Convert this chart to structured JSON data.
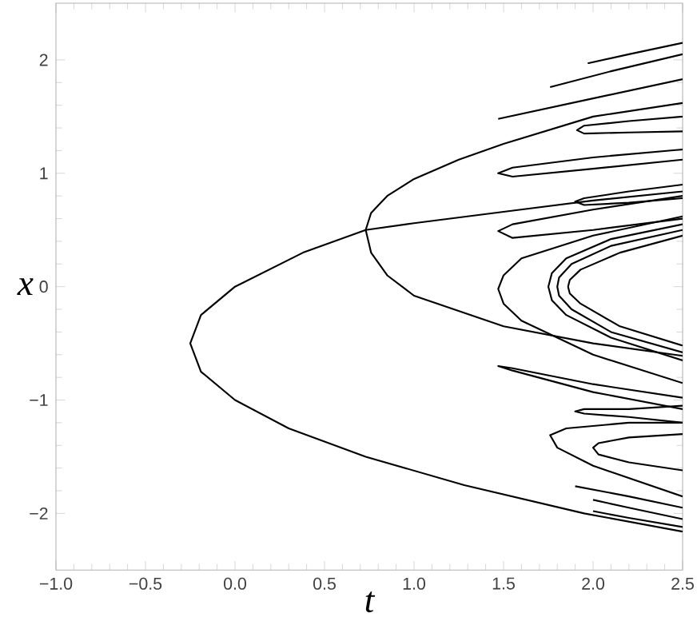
{
  "chart_data": {
    "type": "line",
    "xlabel": "t",
    "ylabel": "x",
    "xlim": [
      -1.0,
      2.5
    ],
    "ylim": [
      -2.5,
      2.5
    ],
    "xticks": [
      {
        "value": -1.0,
        "label": "−1.0"
      },
      {
        "value": -0.5,
        "label": "−0.5"
      },
      {
        "value": 0.0,
        "label": "0.0"
      },
      {
        "value": 0.5,
        "label": "0.5"
      },
      {
        "value": 1.0,
        "label": "1.0"
      },
      {
        "value": 1.5,
        "label": "1.5"
      },
      {
        "value": 2.0,
        "label": "2.0"
      },
      {
        "value": 2.5,
        "label": "2.5"
      }
    ],
    "yticks": [
      {
        "value": -2,
        "label": "−2"
      },
      {
        "value": -1,
        "label": "−1"
      },
      0,
      1,
      2
    ],
    "marker": "none",
    "line_style": "solid",
    "series": [
      {
        "color": "#000000",
        "x": [
          2.5,
          2.0,
          1.5,
          1.0,
          0.73,
          0.38,
          0.0,
          -0.19,
          -0.25,
          -0.19,
          0.0,
          0.3,
          0.73,
          1.28,
          1.95,
          2.5
        ],
        "values": [
          0.84,
          0.76,
          0.66,
          0.56,
          0.5,
          0.3,
          0.0,
          -0.25,
          -0.5,
          -0.75,
          -1.0,
          -1.25,
          -1.5,
          -1.75,
          -2.0,
          -2.16
        ]
      },
      {
        "color": "#000000",
        "x": [
          2.5,
          2.0,
          1.5,
          1.25,
          1.0,
          0.85,
          0.76,
          0.73,
          0.76,
          0.85,
          1.0,
          1.5,
          2.0,
          2.5
        ],
        "values": [
          1.62,
          1.5,
          1.26,
          1.12,
          0.95,
          0.8,
          0.65,
          0.5,
          0.3,
          0.1,
          -0.08,
          -0.35,
          -0.5,
          -0.61
        ]
      },
      {
        "color": "#000000",
        "x": [
          2.5,
          2.0,
          1.55,
          1.47,
          1.55,
          2.0,
          2.5
        ],
        "values": [
          1.21,
          1.14,
          1.05,
          1.0,
          0.97,
          1.04,
          1.12
        ]
      },
      {
        "color": "#000000",
        "x": [
          2.5,
          2.0,
          1.55,
          1.47,
          1.55,
          2.0,
          2.5
        ],
        "values": [
          0.8,
          0.68,
          0.55,
          0.49,
          0.43,
          0.5,
          0.6
        ]
      },
      {
        "color": "#000000",
        "x": [
          2.5,
          2.0,
          1.6,
          1.5,
          1.47,
          1.5,
          1.6,
          2.0,
          2.5
        ],
        "values": [
          0.62,
          0.45,
          0.25,
          0.1,
          -0.02,
          -0.15,
          -0.3,
          -0.6,
          -0.85
        ]
      },
      {
        "color": "#000000",
        "x": [
          2.5,
          2.0,
          1.55,
          1.47,
          1.55,
          2.0,
          2.5
        ],
        "values": [
          -0.98,
          -0.86,
          -0.72,
          -0.7,
          -0.74,
          -0.93,
          -1.08
        ]
      },
      {
        "color": "#000000",
        "x": [
          2.5,
          2.2,
          1.95,
          1.91,
          1.95,
          2.2,
          2.5
        ],
        "values": [
          1.5,
          1.46,
          1.42,
          1.38,
          1.35,
          1.36,
          1.37
        ]
      },
      {
        "color": "#000000",
        "x": [
          2.5,
          2.2,
          1.95,
          1.9,
          1.95,
          2.2,
          2.5
        ],
        "values": [
          0.9,
          0.84,
          0.78,
          0.75,
          0.72,
          0.74,
          0.78
        ]
      },
      {
        "color": "#000000",
        "x": [
          2.5,
          2.2,
          1.95,
          1.9,
          1.95,
          2.2,
          2.5
        ],
        "values": [
          -1.05,
          -1.08,
          -1.08,
          -1.1,
          -1.12,
          -1.15,
          -1.2
        ]
      },
      {
        "color": "#000000",
        "x": [
          2.5,
          2.2,
          2.03,
          2.0,
          2.03,
          2.2,
          2.5
        ],
        "values": [
          -1.3,
          -1.33,
          -1.38,
          -1.42,
          -1.48,
          -1.55,
          -1.62
        ]
      },
      {
        "color": "#000000",
        "x": [
          2.5,
          2.2,
          1.85,
          1.76,
          1.8,
          2.0,
          2.5
        ],
        "values": [
          -1.2,
          -1.2,
          -1.25,
          -1.31,
          -1.42,
          -1.58,
          -1.85
        ]
      },
      {
        "color": "#000000",
        "x": [
          2.5,
          2.1,
          1.85,
          1.77,
          1.75,
          1.77,
          1.85,
          2.1,
          2.5
        ],
        "values": [
          0.55,
          0.42,
          0.25,
          0.12,
          0.0,
          -0.12,
          -0.25,
          -0.45,
          -0.65
        ]
      },
      {
        "color": "#000000",
        "x": [
          2.5,
          2.1,
          1.88,
          1.81,
          1.8,
          1.81,
          1.88,
          2.1,
          2.5
        ],
        "values": [
          0.5,
          0.36,
          0.2,
          0.08,
          0.0,
          -0.08,
          -0.2,
          -0.4,
          -0.58
        ]
      },
      {
        "color": "#000000",
        "x": [
          2.5,
          2.15,
          1.93,
          1.87,
          1.86,
          1.87,
          1.93,
          2.15,
          2.5
        ],
        "values": [
          0.45,
          0.3,
          0.15,
          0.06,
          0.0,
          -0.06,
          -0.15,
          -0.35,
          -0.52
        ]
      },
      {
        "color": "#000000",
        "x": [
          1.47,
          2.0,
          2.5
        ],
        "values": [
          1.48,
          1.66,
          1.83
        ]
      },
      {
        "color": "#000000",
        "x": [
          1.76,
          2.1,
          2.5
        ],
        "values": [
          1.76,
          1.9,
          2.05
        ]
      },
      {
        "color": "#000000",
        "x": [
          1.97,
          2.2,
          2.5
        ],
        "values": [
          1.97,
          2.05,
          2.15
        ]
      },
      {
        "color": "#000000",
        "x": [
          1.9,
          2.2,
          2.5
        ],
        "values": [
          -1.76,
          -1.85,
          -1.95
        ]
      },
      {
        "color": "#000000",
        "x": [
          2.0,
          2.2,
          2.5
        ],
        "values": [
          -1.88,
          -1.95,
          -2.05
        ]
      },
      {
        "color": "#000000",
        "x": [
          2.0,
          2.2,
          2.5
        ],
        "values": [
          -1.98,
          -2.04,
          -2.12
        ]
      }
    ]
  }
}
